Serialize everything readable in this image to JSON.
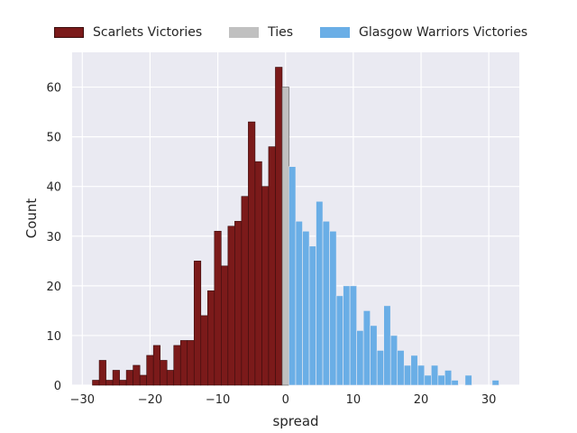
{
  "chart_data": {
    "type": "bar",
    "xlabel": "spread",
    "ylabel": "Count",
    "xlim": [
      -31.5,
      34.5
    ],
    "ylim": [
      0,
      67
    ],
    "x_ticks": [
      -30,
      -20,
      -10,
      0,
      10,
      20,
      30
    ],
    "y_ticks": [
      0,
      10,
      20,
      30,
      40,
      50,
      60
    ],
    "grid": true,
    "legend_position": "top",
    "series": [
      {
        "name": "Scarlets Victories",
        "color": "#7b1a1a",
        "x": [
          -28,
          -27,
          -26,
          -25,
          -24,
          -23,
          -22,
          -21,
          -20,
          -19,
          -18,
          -17,
          -16,
          -15,
          -14,
          -13,
          -12,
          -11,
          -10,
          -9,
          -8,
          -7,
          -6,
          -5,
          -4,
          -3,
          -2,
          -1
        ],
        "values": [
          1,
          5,
          1,
          3,
          1,
          3,
          4,
          2,
          6,
          8,
          5,
          3,
          8,
          9,
          9,
          25,
          14,
          19,
          31,
          24,
          32,
          33,
          38,
          53,
          45,
          40,
          48,
          64
        ]
      },
      {
        "name": "Ties",
        "color": "#c0c0c0",
        "x": [
          0
        ],
        "values": [
          60
        ]
      },
      {
        "name": "Glasgow Warriors Victories",
        "color": "#6aaee6",
        "x": [
          1,
          2,
          3,
          4,
          5,
          6,
          7,
          8,
          9,
          10,
          11,
          12,
          13,
          14,
          15,
          16,
          17,
          18,
          19,
          20,
          21,
          22,
          23,
          24,
          25,
          26,
          27,
          28,
          29,
          30,
          31
        ],
        "values": [
          44,
          33,
          31,
          28,
          37,
          33,
          31,
          18,
          20,
          20,
          11,
          15,
          12,
          7,
          16,
          10,
          7,
          4,
          6,
          4,
          2,
          4,
          2,
          3,
          1,
          0,
          2,
          0,
          0,
          0,
          1
        ]
      }
    ]
  }
}
